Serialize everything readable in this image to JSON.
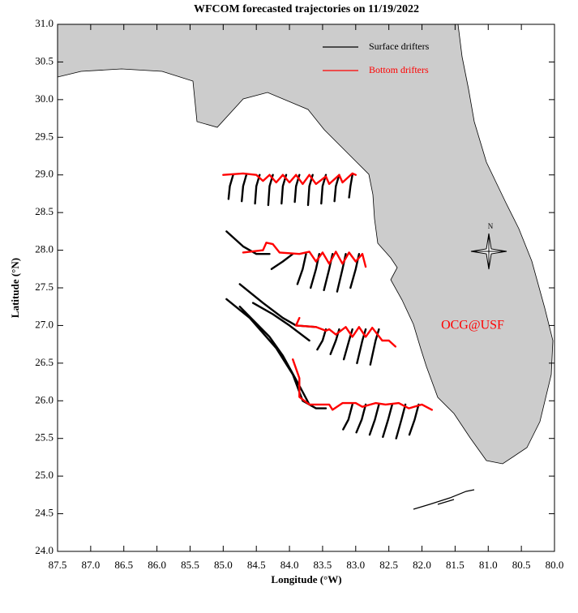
{
  "chart_data": {
    "type": "map",
    "title": "WFCOM forecasted trajectories on 11/19/2022",
    "x_label": "Longitude (°W)",
    "y_label": "Latitude (°N)",
    "annotation": "OCG@USF",
    "compass_label": "N",
    "legend": "upper right",
    "xlim": [
      87.5,
      80.0
    ],
    "ylim": [
      24.0,
      31.0
    ],
    "xticks": [
      87.5,
      {
        "value": 87,
        "label": "87.0"
      },
      86.5,
      {
        "value": 86,
        "label": "86.0"
      },
      85.5,
      {
        "value": 85,
        "label": "85.0"
      },
      84.5,
      {
        "value": 84,
        "label": "84.0"
      },
      83.5,
      {
        "value": 83,
        "label": "83.0"
      },
      82.5,
      {
        "value": 82,
        "label": "82.0"
      },
      81.5,
      {
        "value": 81,
        "label": "81.0"
      },
      80.5,
      {
        "value": 80,
        "label": "80.0"
      }
    ],
    "yticks": [
      {
        "value": 24,
        "label": "24.0"
      },
      24.5,
      {
        "value": 25,
        "label": "25.0"
      },
      25.5,
      {
        "value": 26,
        "label": "26.0"
      },
      26.5,
      {
        "value": 27,
        "label": "27.0"
      },
      27.5,
      {
        "value": 28,
        "label": "28.0"
      },
      28.5,
      {
        "value": 29,
        "label": "29.0"
      },
      29.5,
      {
        "value": 30,
        "label": "30.0"
      },
      30.5,
      {
        "value": 31,
        "label": "31.0"
      }
    ],
    "series": [
      {
        "name": "Surface drifters",
        "color": "#000000",
        "x": [
          84.85,
          84.9,
          84.92,
          null,
          84.65,
          84.7,
          84.72,
          null,
          84.45,
          84.5,
          84.52,
          null,
          84.25,
          84.3,
          84.32,
          null,
          84.05,
          84.1,
          84.12,
          null,
          83.85,
          83.9,
          83.92,
          null,
          83.65,
          83.7,
          83.72,
          null,
          83.45,
          83.5,
          83.52,
          null,
          83.25,
          83.3,
          83.32,
          null,
          83.05,
          83.08,
          83.1,
          null,
          84.95,
          84.7,
          84.5,
          84.3,
          null,
          83.95,
          84.1,
          84.27,
          null,
          83.75,
          83.8,
          83.88,
          null,
          83.55,
          83.6,
          83.68,
          null,
          83.35,
          83.4,
          83.48,
          null,
          83.15,
          83.2,
          83.28,
          null,
          82.95,
          83.0,
          83.08,
          null,
          84.75,
          84.4,
          84.1,
          83.9,
          83.6,
          null,
          84.55,
          84.25,
          84.0,
          83.7,
          null,
          83.45,
          83.5,
          83.58,
          null,
          83.25,
          83.3,
          83.38,
          null,
          83.05,
          83.1,
          83.18,
          null,
          82.85,
          82.9,
          82.98,
          null,
          82.65,
          82.7,
          82.78,
          null,
          84.95,
          84.6,
          84.2,
          83.95,
          83.8,
          83.6,
          83.45,
          null,
          84.75,
          84.3,
          84.1,
          83.85,
          83.7,
          null,
          83.05,
          83.11,
          83.19,
          null,
          82.85,
          82.91,
          82.99,
          null,
          82.65,
          82.71,
          82.79,
          null,
          82.45,
          82.51,
          82.59,
          null,
          82.25,
          82.31,
          82.39,
          null,
          82.05,
          82.11,
          82.19
        ],
        "y": [
          29.0,
          28.85,
          28.68,
          null,
          29.0,
          28.85,
          28.65,
          null,
          29.0,
          28.85,
          28.62,
          null,
          29.0,
          28.85,
          28.6,
          null,
          29.0,
          28.85,
          28.62,
          null,
          29.0,
          28.85,
          28.64,
          null,
          29.0,
          28.85,
          28.6,
          null,
          29.0,
          28.85,
          28.62,
          null,
          29.0,
          28.85,
          28.65,
          null,
          29.0,
          28.85,
          28.7,
          null,
          28.25,
          28.05,
          27.95,
          27.95,
          null,
          27.95,
          27.85,
          27.75,
          null,
          27.95,
          27.75,
          27.55,
          null,
          27.95,
          27.75,
          27.5,
          null,
          27.95,
          27.75,
          27.47,
          null,
          27.95,
          27.75,
          27.45,
          null,
          27.95,
          27.75,
          27.5,
          null,
          27.55,
          27.3,
          27.1,
          27.0,
          26.98,
          null,
          27.3,
          27.15,
          27.0,
          26.8,
          null,
          26.95,
          26.8,
          26.68,
          null,
          26.95,
          26.8,
          26.62,
          null,
          26.95,
          26.8,
          26.55,
          null,
          26.95,
          26.8,
          26.5,
          null,
          26.95,
          26.8,
          26.48,
          null,
          27.35,
          27.1,
          26.7,
          26.35,
          26.0,
          25.9,
          25.9,
          null,
          27.25,
          26.85,
          26.6,
          26.2,
          25.95,
          null,
          25.95,
          25.75,
          25.62,
          null,
          25.95,
          25.75,
          25.58,
          null,
          25.95,
          25.75,
          25.55,
          null,
          25.95,
          25.75,
          25.52,
          null,
          25.95,
          25.75,
          25.5,
          null,
          25.95,
          25.75,
          25.55
        ]
      },
      {
        "name": "Bottom drifters",
        "color": "#ff0000",
        "x": [
          85.0,
          84.7,
          84.5,
          84.4,
          84.3,
          84.2,
          84.1,
          84.0,
          83.9,
          83.8,
          83.7,
          83.6,
          83.45,
          83.4,
          83.25,
          83.2,
          83.05,
          83.0,
          null,
          84.7,
          84.4,
          84.35,
          84.25,
          84.15,
          83.85,
          83.7,
          83.6,
          83.5,
          83.4,
          83.3,
          83.2,
          83.1,
          83.0,
          82.9,
          82.85,
          null,
          83.85,
          83.9,
          83.6,
          83.45,
          83.4,
          83.3,
          83.15,
          83.05,
          82.95,
          82.85,
          82.75,
          82.6,
          82.5,
          82.4,
          null,
          83.95,
          83.85,
          83.85,
          83.7,
          83.4,
          83.35,
          83.2,
          83.0,
          82.9,
          82.7,
          82.55,
          82.35,
          82.2,
          82.0,
          81.85
        ],
        "y": [
          29.0,
          29.02,
          29.0,
          28.92,
          29.0,
          28.9,
          29.0,
          28.9,
          29.0,
          28.88,
          29.0,
          28.88,
          28.98,
          28.88,
          29.0,
          28.9,
          29.02,
          29.0,
          null,
          27.97,
          28.0,
          28.1,
          28.08,
          27.97,
          27.95,
          27.98,
          27.85,
          27.97,
          27.82,
          27.98,
          27.82,
          27.97,
          27.85,
          27.95,
          27.78,
          null,
          27.1,
          27.0,
          26.98,
          26.93,
          26.95,
          26.88,
          26.98,
          26.85,
          26.98,
          26.85,
          26.97,
          26.8,
          26.8,
          26.72,
          null,
          26.55,
          26.3,
          26.05,
          25.95,
          25.95,
          25.88,
          25.97,
          25.97,
          25.92,
          25.97,
          25.95,
          25.97,
          25.9,
          25.95,
          25.88
        ]
      }
    ]
  }
}
